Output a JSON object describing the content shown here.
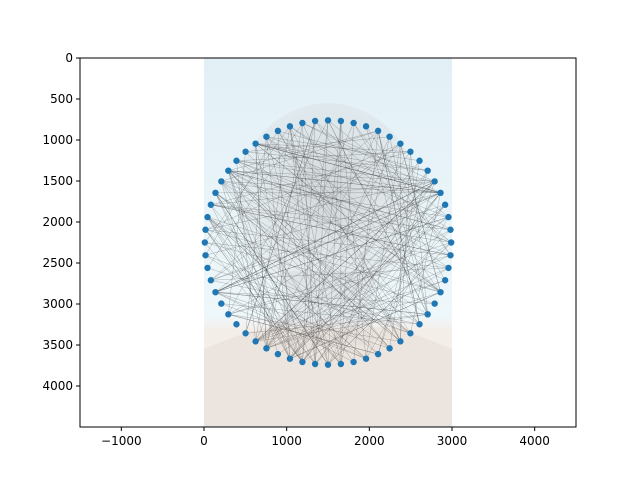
{
  "chart_data": {
    "type": "scatter",
    "title": "",
    "xlabel": "",
    "ylabel": "",
    "xlim": [
      -1500,
      4500
    ],
    "ylim": [
      4500,
      0
    ],
    "y_inverted": true,
    "grid": false,
    "x_ticks": [
      -1000,
      0,
      1000,
      2000,
      3000,
      4000
    ],
    "y_ticks": [
      0,
      500,
      1000,
      1500,
      2000,
      2500,
      3000,
      3500,
      4000
    ],
    "background_image": {
      "extent_x": [
        0,
        3000
      ],
      "extent_y": [
        0,
        4500
      ],
      "description": "greyscale portrait of a person's head and shoulders on a pale blue backdrop",
      "top_color": "#e2f0f6",
      "bottom_color": "#f3ede8"
    },
    "nail_color": "#1f77b4",
    "thread_color": "#3a3a3a",
    "nails": {
      "count": 60,
      "center": [
        1500,
        2250
      ],
      "radius_x": 1490,
      "radius_y": 1490
    }
  }
}
